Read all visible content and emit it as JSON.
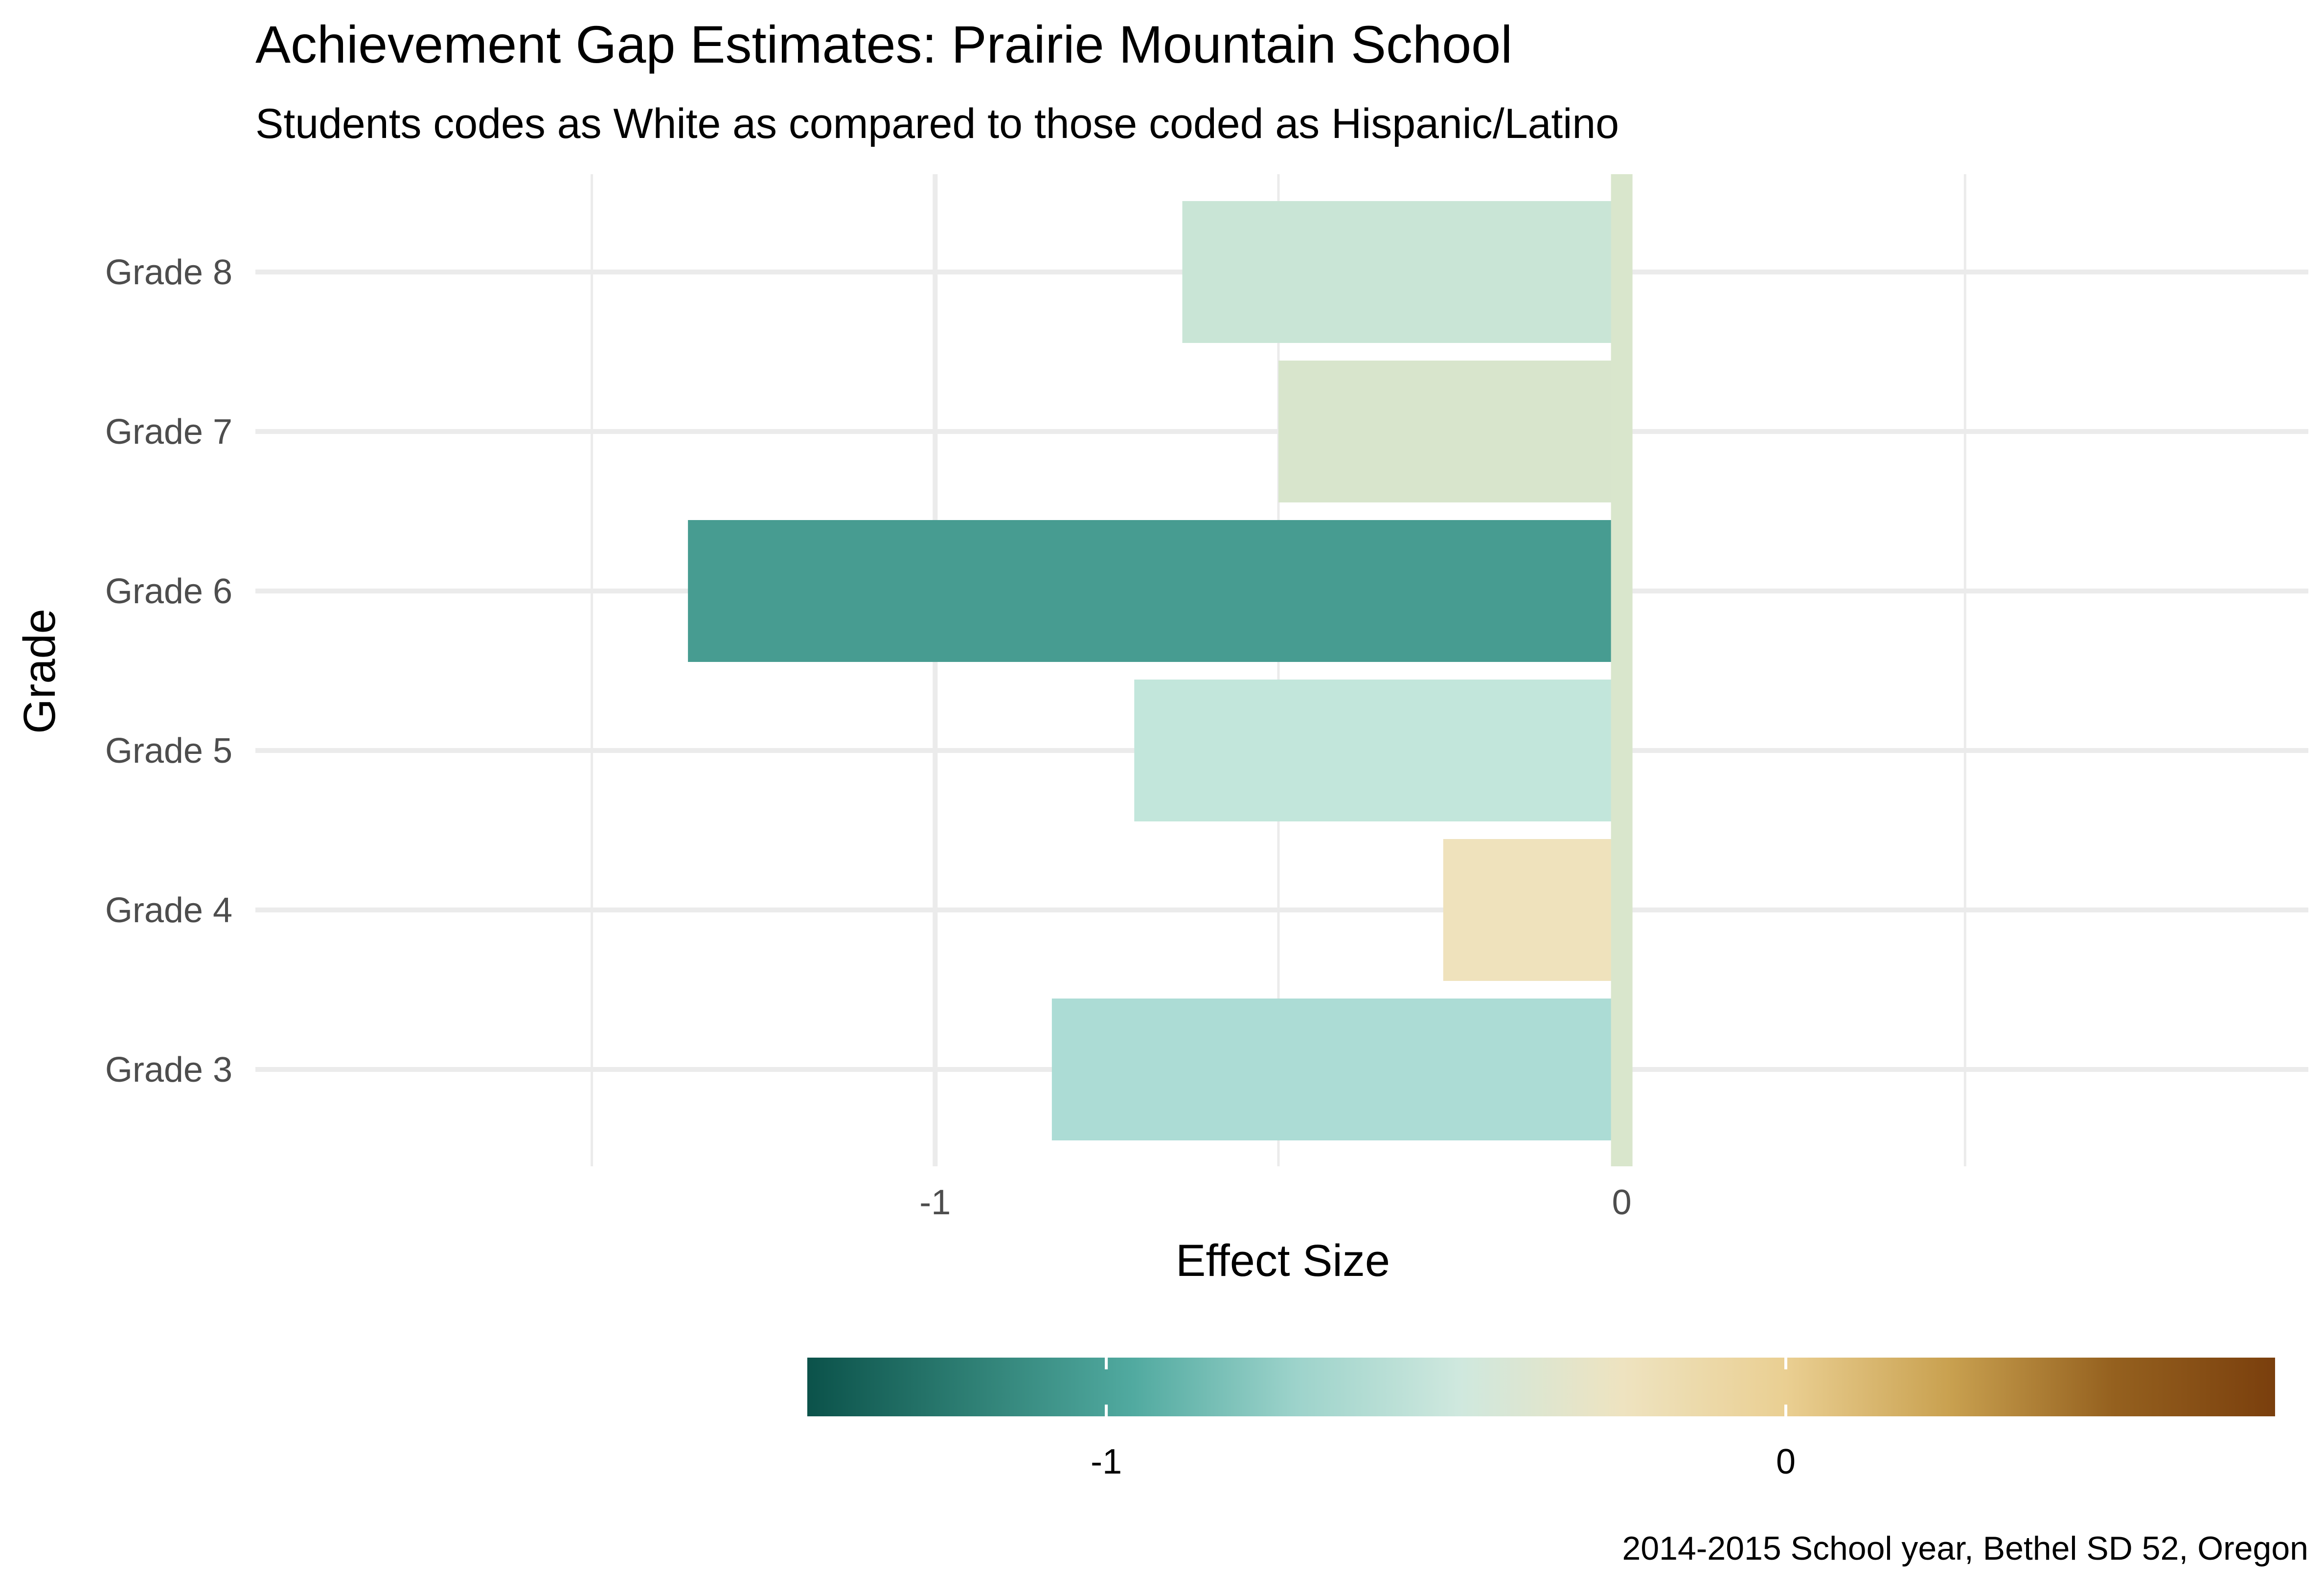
{
  "chart_data": {
    "type": "bar",
    "orientation": "horizontal",
    "title": "Achievement Gap Estimates: Prairie Mountain School",
    "subtitle": "Students codes as White as compared to those coded as Hispanic/Latino",
    "xlabel": "Effect Size",
    "ylabel": "Grade",
    "caption": "2014-2015 School year, Bethel SD 52, Oregon",
    "categories": [
      "Grade 3",
      "Grade 4",
      "Grade 5",
      "Grade 6",
      "Grade 7",
      "Grade 8"
    ],
    "values": [
      -0.83,
      -0.26,
      -0.71,
      -1.36,
      -0.5,
      -0.64
    ],
    "xlim": [
      -1.99,
      1.0
    ],
    "x_major_ticks": [
      -1,
      0
    ],
    "x_minor_ticks": [
      -1.5,
      -0.5,
      0.5
    ],
    "grid": true,
    "reference_line": {
      "x": 0,
      "color": "#d9e6cc"
    },
    "bar_colors": [
      "#acdcd5",
      "#efe2bc",
      "#c2e6db",
      "#479c91",
      "#d8e5cc",
      "#c9e5d6"
    ],
    "legend": {
      "type": "colorbar",
      "position": "bottom",
      "range": [
        -1.44,
        0.72
      ],
      "ticks": [
        -1,
        0
      ],
      "colors": [
        "#0b524a",
        "#2e7f74",
        "#51aaa0",
        "#9dd3cb",
        "#cfe8de",
        "#eee3c0",
        "#eacf92",
        "#c9a150",
        "#95611f",
        "#7a3f0d"
      ]
    }
  }
}
